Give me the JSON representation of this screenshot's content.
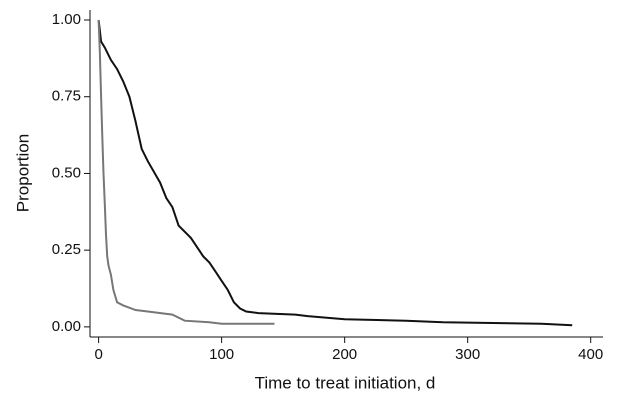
{
  "chart_data": {
    "type": "line",
    "x_label": "Time to treat initiation, d",
    "y_label": "Proportion",
    "xlim": [
      -7,
      410
    ],
    "ylim": [
      -0.033,
      1.0
    ],
    "xticks": [
      0,
      100,
      200,
      300,
      400
    ],
    "yticks": [
      {
        "value": 0,
        "label": "0.00"
      },
      0.25,
      {
        "value": 0.5,
        "label": "0.50"
      },
      0.75,
      {
        "value": 1,
        "label": "1.00"
      }
    ],
    "series": [
      {
        "color": "#111111",
        "x": [
          0,
          2,
          5,
          10,
          15,
          20,
          25,
          30,
          35,
          40,
          50,
          55,
          60,
          65,
          75,
          85,
          90,
          95,
          100,
          105,
          110,
          115,
          120,
          130,
          160,
          170,
          200,
          250,
          280,
          360,
          385
        ],
        "values": [
          1.0,
          0.93,
          0.91,
          0.87,
          0.84,
          0.8,
          0.75,
          0.67,
          0.58,
          0.54,
          0.47,
          0.42,
          0.39,
          0.33,
          0.29,
          0.23,
          0.21,
          0.18,
          0.15,
          0.12,
          0.08,
          0.06,
          0.05,
          0.045,
          0.04,
          0.035,
          0.025,
          0.02,
          0.015,
          0.01,
          0.005
        ]
      },
      {
        "color": "#777777",
        "x": [
          0,
          1,
          2,
          3,
          4,
          5,
          6,
          7,
          8,
          10,
          12,
          15,
          20,
          30,
          40,
          60,
          70,
          90,
          100,
          143
        ],
        "values": [
          1.0,
          0.9,
          0.75,
          0.62,
          0.5,
          0.4,
          0.3,
          0.23,
          0.2,
          0.17,
          0.12,
          0.08,
          0.07,
          0.055,
          0.05,
          0.04,
          0.02,
          0.015,
          0.01,
          0.01
        ]
      }
    ]
  }
}
